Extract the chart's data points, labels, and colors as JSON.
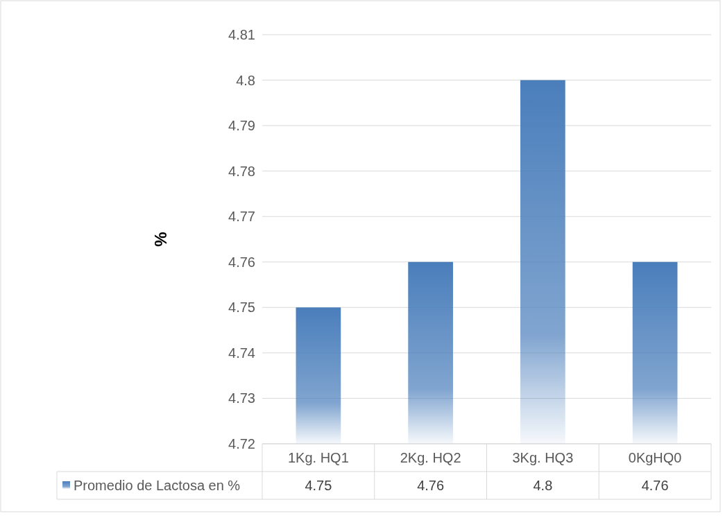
{
  "chart_data": {
    "type": "bar",
    "ylabel": "%",
    "categories": [
      "1Kg. HQ1",
      "2Kg. HQ2",
      "3Kg. HQ3",
      "0KgHQ0"
    ],
    "series": [
      {
        "name": "Promedio de Lactosa en %",
        "color": "#4a7ebb",
        "values": [
          4.75,
          4.76,
          4.8,
          4.76
        ]
      }
    ],
    "ylim": [
      4.72,
      4.81
    ],
    "yticks": [
      4.72,
      4.73,
      4.74,
      4.75,
      4.76,
      4.77,
      4.78,
      4.79,
      4.8,
      4.81
    ],
    "grid": "y",
    "data_labels": true,
    "legend": "bottom"
  }
}
